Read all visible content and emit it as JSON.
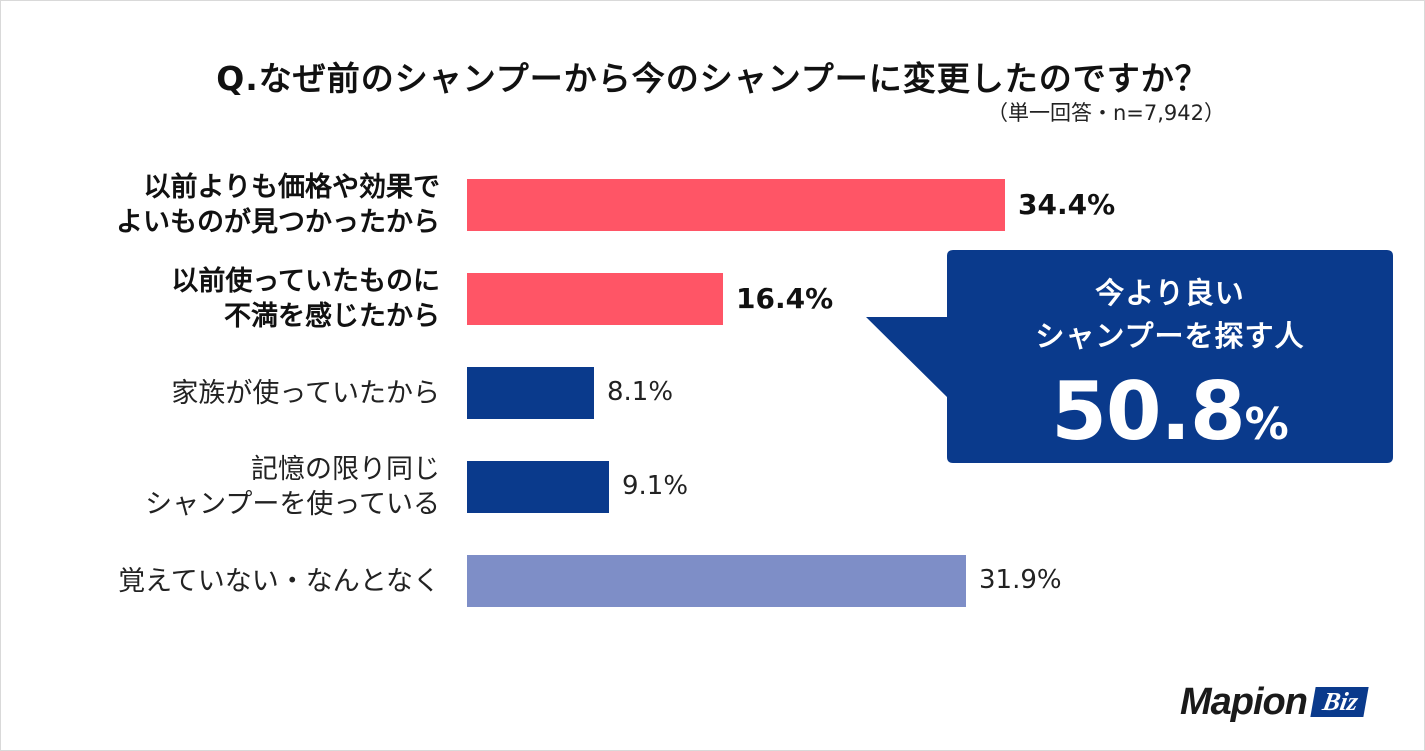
{
  "chart_data": {
    "type": "bar",
    "orientation": "horizontal",
    "title": "Q.なぜ前のシャンプーから今のシャンプーに変更したのですか？",
    "subtitle": "（単一回答・n=7,942）",
    "xlim": [
      0,
      40
    ],
    "categories": [
      [
        "以前よりも価格や効果で",
        "よいものが見つかったから"
      ],
      [
        "以前使っていたものに",
        "不満を感じたから"
      ],
      [
        "家族が使っていたから"
      ],
      [
        "記憶の限り同じ",
        "シャンプーを使っている"
      ],
      [
        "覚えていない・なんとなく"
      ]
    ],
    "values": [
      34.4,
      16.4,
      8.1,
      9.1,
      31.9
    ],
    "value_labels": [
      "34.4%",
      "16.4%",
      "8.1%",
      "9.1%",
      "31.9%"
    ],
    "colors": [
      "#ff5566",
      "#ff5566",
      "#0a3a8c",
      "#0a3a8c",
      "#7e8ec7"
    ],
    "highlight": [
      true,
      true,
      false,
      false,
      false
    ],
    "annotation": {
      "line1": "今より良い",
      "line2": "シャンプーを探す人",
      "value": "50.8",
      "unit": "%",
      "color": "#0a3a8c"
    }
  },
  "branding": {
    "logo_text": "Mapion",
    "logo_badge": "Biz"
  }
}
